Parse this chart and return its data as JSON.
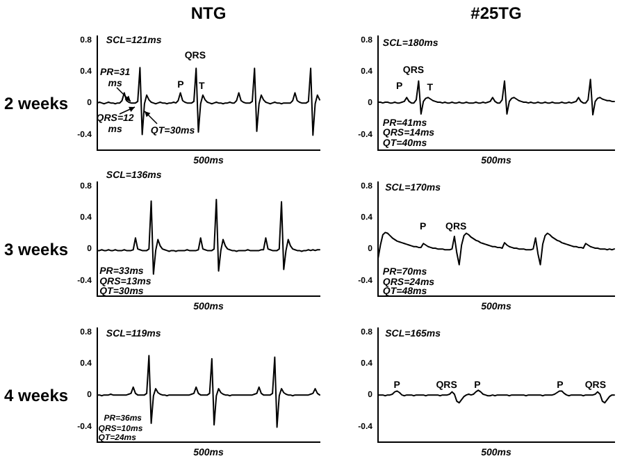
{
  "chart_data": [
    {
      "type": "line",
      "title": "NTG",
      "ylabel": "2 weeks",
      "xlabel": "500ms",
      "tick_labels": "y",
      "ylim": [
        -0.6,
        0.85
      ],
      "yticks": [
        -0.4,
        0,
        0.4,
        0.8
      ],
      "annotations": [
        "SCL=121ms",
        "PR=31 ms",
        "QRS=12 ms",
        "QT=30ms",
        "QRS",
        "P",
        "T"
      ],
      "categories": [
        null,
        null,
        null,
        null,
        null,
        null,
        null,
        null,
        null,
        null,
        null,
        null,
        null,
        null,
        null,
        null,
        null,
        null,
        null,
        null,
        null,
        null,
        null,
        null,
        null,
        null,
        null,
        null,
        null,
        null,
        null,
        null,
        null,
        null,
        null,
        null,
        null,
        null,
        null,
        null,
        null,
        null,
        null,
        null,
        null,
        null,
        null,
        null,
        null,
        null,
        null,
        null,
        null,
        null,
        null,
        null,
        null,
        null,
        null,
        null,
        null,
        null,
        null,
        null,
        null,
        null,
        null,
        null,
        null,
        null,
        null,
        null,
        null,
        null,
        null,
        null,
        null,
        null,
        null,
        null,
        null,
        null,
        null,
        null,
        null,
        null,
        null,
        null,
        null,
        null,
        null,
        null,
        null,
        null,
        null,
        null,
        null,
        null,
        null,
        null
      ],
      "series": [
        {
          "color": "#000000",
          "values": [
            0,
            0.01,
            0,
            -0.01,
            0,
            0.01,
            0,
            0,
            -0.01,
            0,
            0,
            0.03,
            0.13,
            0.03,
            0.01,
            0,
            0,
            0,
            0.02,
            0.45,
            -0.4,
            -0.01,
            0.1,
            0.04,
            0.01,
            0,
            -0.01,
            0,
            0.01,
            0,
            0,
            -0.01,
            0,
            0,
            0.01,
            0,
            0.03,
            0.13,
            0.03,
            0.01,
            0,
            0,
            0,
            0.02,
            0.44,
            -0.37,
            -0.01,
            0.1,
            0.04,
            0.01,
            0,
            -0.01,
            0,
            0.01,
            0,
            0,
            -0.01,
            0,
            0,
            0.01,
            0,
            0,
            0.03,
            0.13,
            0.03,
            0.01,
            0,
            0,
            0,
            0.02,
            0.44,
            -0.36,
            -0.01,
            0.1,
            0.04,
            0.01,
            0,
            -0.01,
            0,
            0.01,
            0,
            0,
            -0.01,
            0,
            0,
            0,
            0,
            0.03,
            0.13,
            0.03,
            0.01,
            0,
            0,
            0,
            0.02,
            0.44,
            -0.41,
            -0.01,
            0.1,
            0.04
          ]
        }
      ]
    },
    {
      "type": "line",
      "title": "#25TG",
      "xlabel": "500ms",
      "tick_labels": "y",
      "ylim": [
        -0.6,
        0.85
      ],
      "yticks": [
        -0.4,
        0,
        0.4,
        0.8
      ],
      "annotations": [
        "SCL=180ms",
        "QRS",
        "P",
        "T",
        "PR=41ms",
        "QRS=14ms",
        "QT=40ms"
      ],
      "categories": [
        null,
        null,
        null,
        null,
        null,
        null,
        null,
        null,
        null,
        null,
        null,
        null,
        null,
        null,
        null,
        null,
        null,
        null,
        null,
        null,
        null,
        null,
        null,
        null,
        null,
        null,
        null,
        null,
        null,
        null,
        null,
        null,
        null,
        null,
        null,
        null,
        null,
        null,
        null,
        null,
        null,
        null,
        null,
        null,
        null,
        null,
        null,
        null,
        null,
        null,
        null,
        null,
        null,
        null,
        null,
        null,
        null,
        null,
        null,
        null,
        null,
        null,
        null,
        null,
        null,
        null,
        null,
        null,
        null,
        null,
        null,
        null,
        null,
        null,
        null,
        null,
        null,
        null,
        null,
        null,
        null,
        null,
        null,
        null,
        null,
        null,
        null,
        null,
        null,
        null,
        null,
        null,
        null,
        null,
        null,
        null,
        null,
        null,
        null,
        null
      ],
      "series": [
        {
          "color": "#000000",
          "values": [
            0.01,
            0.01,
            0,
            0.01,
            0.01,
            0,
            0,
            0.01,
            0,
            0,
            0.01,
            0.02,
            0.07,
            0.02,
            0,
            0,
            0.04,
            0.28,
            -0.14,
            0.02,
            0.06,
            0.07,
            0.05,
            0.03,
            0.02,
            0.01,
            0.01,
            0,
            0.01,
            0,
            0,
            0.01,
            0,
            0,
            0.01,
            0,
            0,
            0.01,
            0,
            0,
            0,
            0.01,
            0,
            0,
            0.01,
            0,
            0.01,
            0.02,
            0.07,
            0.02,
            0,
            0,
            0.04,
            0.28,
            -0.14,
            0.02,
            0.06,
            0.07,
            0.05,
            0.03,
            0.02,
            0.01,
            0.01,
            0,
            0.01,
            0,
            0,
            0.01,
            0,
            0,
            0.01,
            0,
            0,
            0.01,
            0,
            0,
            0,
            0.01,
            0,
            0,
            0.01,
            0,
            0.01,
            0.02,
            0.07,
            0.02,
            0,
            0,
            0.04,
            0.3,
            -0.15,
            0.02,
            0.06,
            0.07,
            0.05,
            0.04,
            0.03,
            0.03,
            0.02,
            0.02
          ]
        }
      ]
    },
    {
      "type": "line",
      "ylabel": "3 weeks",
      "xlabel": "500ms",
      "tick_labels": "y",
      "ylim": [
        -0.6,
        0.85
      ],
      "yticks": [
        -0.4,
        0,
        0.4,
        0.8
      ],
      "annotations": [
        "SCL=136ms",
        "PR=33ms",
        "QRS=13ms",
        "QT=30ms"
      ],
      "categories": [
        null,
        null,
        null,
        null,
        null,
        null,
        null,
        null,
        null,
        null,
        null,
        null,
        null,
        null,
        null,
        null,
        null,
        null,
        null,
        null,
        null,
        null,
        null,
        null,
        null,
        null,
        null,
        null,
        null,
        null,
        null,
        null,
        null,
        null,
        null,
        null,
        null,
        null,
        null,
        null,
        null,
        null,
        null,
        null,
        null,
        null,
        null,
        null,
        null,
        null,
        null,
        null,
        null,
        null,
        null,
        null,
        null,
        null,
        null,
        null,
        null,
        null,
        null,
        null,
        null,
        null,
        null,
        null,
        null,
        null,
        null,
        null,
        null,
        null,
        null,
        null,
        null,
        null,
        null,
        null,
        null,
        null,
        null,
        null,
        null,
        null,
        null,
        null,
        null,
        null,
        null,
        null,
        null,
        null,
        null,
        null,
        null,
        null,
        null,
        null
      ],
      "series": [
        {
          "color": "#000000",
          "values": [
            -0.02,
            -0.02,
            -0.01,
            -0.02,
            -0.02,
            -0.01,
            -0.02,
            -0.02,
            -0.01,
            -0.02,
            -0.02,
            -0.02,
            -0.01,
            -0.02,
            -0.02,
            -0.02,
            -0.01,
            0.14,
            0,
            -0.01,
            -0.02,
            -0.02,
            -0.02,
            0,
            0.61,
            -0.32,
            -0.02,
            0.12,
            0.04,
            0,
            -0.01,
            -0.02,
            -0.03,
            -0.02,
            -0.02,
            -0.03,
            -0.02,
            -0.02,
            -0.02,
            -0.02,
            -0.01,
            -0.02,
            -0.02,
            -0.02,
            -0.02,
            -0.01,
            0.14,
            0,
            -0.01,
            -0.02,
            -0.02,
            -0.02,
            0,
            0.63,
            -0.28,
            -0.02,
            0.12,
            0.04,
            0,
            -0.01,
            -0.02,
            -0.02,
            -0.03,
            -0.02,
            -0.02,
            -0.02,
            -0.02,
            -0.01,
            -0.02,
            -0.02,
            -0.02,
            -0.02,
            -0.02,
            -0.01,
            -0.01,
            0.14,
            0,
            -0.01,
            -0.02,
            -0.02,
            -0.02,
            0,
            0.6,
            -0.26,
            -0.02,
            0.12,
            0.04,
            0,
            -0.01,
            -0.02,
            -0.02,
            -0.03,
            -0.02,
            -0.02,
            -0.01,
            -0.02,
            -0.01,
            -0.02,
            -0.01,
            -0.01
          ]
        }
      ]
    },
    {
      "type": "line",
      "xlabel": "500ms",
      "tick_labels": "y",
      "ylim": [
        -0.6,
        0.85
      ],
      "yticks": [
        -0.4,
        0,
        0.4,
        0.8
      ],
      "annotations": [
        "SCL=170ms",
        "P",
        "QRS",
        "PR=70ms",
        "QRS=24ms",
        "QT=48ms"
      ],
      "categories": [
        null,
        null,
        null,
        null,
        null,
        null,
        null,
        null,
        null,
        null,
        null,
        null,
        null,
        null,
        null,
        null,
        null,
        null,
        null,
        null,
        null,
        null,
        null,
        null,
        null,
        null,
        null,
        null,
        null,
        null,
        null,
        null,
        null,
        null,
        null,
        null,
        null,
        null,
        null,
        null,
        null,
        null,
        null,
        null,
        null,
        null,
        null,
        null,
        null,
        null,
        null,
        null,
        null,
        null,
        null,
        null,
        null,
        null,
        null,
        null,
        null,
        null,
        null,
        null,
        null,
        null,
        null,
        null,
        null,
        null,
        null,
        null,
        null,
        null,
        null,
        null,
        null,
        null,
        null,
        null,
        null,
        null,
        null,
        null,
        null,
        null,
        null,
        null,
        null,
        null,
        null,
        null,
        null,
        null,
        null,
        null,
        null,
        null,
        null,
        null
      ],
      "series": [
        {
          "color": "#000000",
          "values": [
            -0.12,
            0.05,
            0.18,
            0.21,
            0.2,
            0.17,
            0.14,
            0.12,
            0.1,
            0.09,
            0.08,
            0.07,
            0.06,
            0.05,
            0.04,
            0.03,
            0.03,
            0.02,
            0.02,
            0.07,
            0.05,
            0.03,
            0.02,
            0.01,
            0.01,
            0,
            0,
            0,
            -0.01,
            -0.01,
            -0.01,
            0,
            0.16,
            -0.05,
            -0.2,
            0.05,
            0.17,
            0.2,
            0.18,
            0.15,
            0.13,
            0.11,
            0.1,
            0.08,
            0.07,
            0.06,
            0.05,
            0.04,
            0.03,
            0.03,
            0.02,
            0.02,
            0.01,
            0.08,
            0.05,
            0.03,
            0.02,
            0.01,
            0.01,
            0,
            0,
            0,
            -0.01,
            -0.01,
            -0.01,
            0,
            0.14,
            -0.06,
            -0.2,
            0.06,
            0.17,
            0.2,
            0.18,
            0.15,
            0.13,
            0.11,
            0.1,
            0.08,
            0.07,
            0.06,
            0.05,
            0.04,
            0.03,
            0.03,
            0.02,
            0.02,
            0.01,
            0.07,
            0.05,
            0.03,
            0.02,
            0.01,
            0.01,
            0,
            0,
            0,
            -0.01,
            0,
            -0.01,
            0
          ]
        }
      ]
    },
    {
      "type": "line",
      "ylabel": "4 weeks",
      "xlabel": "500ms",
      "tick_labels": "y",
      "ylim": [
        -0.6,
        0.85
      ],
      "yticks": [
        -0.4,
        0,
        0.4,
        0.8
      ],
      "annotations": [
        "SCL=119ms",
        "PR=36ms",
        "QRS=10ms",
        "QT=24ms"
      ],
      "categories": [
        null,
        null,
        null,
        null,
        null,
        null,
        null,
        null,
        null,
        null,
        null,
        null,
        null,
        null,
        null,
        null,
        null,
        null,
        null,
        null,
        null,
        null,
        null,
        null,
        null,
        null,
        null,
        null,
        null,
        null,
        null,
        null,
        null,
        null,
        null,
        null,
        null,
        null,
        null,
        null,
        null,
        null,
        null,
        null,
        null,
        null,
        null,
        null,
        null,
        null,
        null,
        null,
        null,
        null,
        null,
        null,
        null,
        null,
        null,
        null,
        null,
        null,
        null,
        null,
        null,
        null,
        null,
        null,
        null,
        null,
        null,
        null,
        null,
        null,
        null,
        null,
        null,
        null,
        null,
        null,
        null,
        null,
        null,
        null,
        null,
        null,
        null,
        null,
        null,
        null,
        null,
        null,
        null,
        null,
        null,
        null,
        null,
        null,
        null,
        null
      ],
      "series": [
        {
          "color": "#000000",
          "values": [
            0,
            0,
            -0.01,
            0,
            0,
            0,
            0.01,
            0,
            0,
            0,
            0,
            0,
            0,
            0,
            0.01,
            0.02,
            0.1,
            0.02,
            0,
            0,
            0,
            0,
            0.02,
            0.5,
            -0.36,
            -0.01,
            0.08,
            0.03,
            0.01,
            0,
            0,
            -0.01,
            0,
            0,
            0,
            0,
            0,
            0,
            0,
            0,
            0,
            0,
            0.01,
            0.02,
            0.1,
            0.02,
            0,
            0,
            0,
            0,
            0.02,
            0.46,
            -0.38,
            -0.01,
            0.08,
            0.03,
            0.01,
            0,
            0,
            -0.01,
            0,
            0,
            0,
            0,
            0,
            0,
            0,
            0,
            0,
            0,
            0.01,
            0.02,
            0.1,
            0.02,
            0,
            0,
            0,
            0,
            0.02,
            0.48,
            -0.41,
            -0.01,
            0.08,
            0.03,
            0.01,
            0,
            0,
            -0.01,
            0,
            0,
            0,
            0,
            0,
            0,
            0,
            0.01,
            0.02,
            0.08,
            0.02,
            0
          ]
        }
      ]
    },
    {
      "type": "line",
      "xlabel": "500ms",
      "tick_labels": "y",
      "ylim": [
        -0.6,
        0.85
      ],
      "yticks": [
        -0.4,
        0,
        0.4,
        0.8
      ],
      "annotations": [
        "SCL=165ms",
        "P",
        "QRS",
        "P",
        "P",
        "QRS"
      ],
      "categories": [
        null,
        null,
        null,
        null,
        null,
        null,
        null,
        null,
        null,
        null,
        null,
        null,
        null,
        null,
        null,
        null,
        null,
        null,
        null,
        null,
        null,
        null,
        null,
        null,
        null,
        null,
        null,
        null,
        null,
        null,
        null,
        null,
        null,
        null,
        null,
        null,
        null,
        null,
        null,
        null,
        null,
        null,
        null,
        null,
        null,
        null,
        null,
        null,
        null,
        null,
        null,
        null,
        null,
        null,
        null,
        null,
        null,
        null,
        null,
        null,
        null,
        null,
        null,
        null,
        null,
        null,
        null,
        null,
        null,
        null,
        null,
        null,
        null,
        null,
        null,
        null,
        null,
        null,
        null,
        null,
        null,
        null,
        null,
        null,
        null,
        null,
        null,
        null,
        null,
        null,
        null,
        null,
        null,
        null,
        null,
        null,
        null,
        null,
        null,
        null
      ],
      "series": [
        {
          "color": "#000000",
          "values": [
            0,
            0,
            0,
            -0.01,
            0,
            0,
            0.01,
            0.04,
            0.05,
            0.03,
            0,
            -0.01,
            0,
            0,
            0,
            -0.01,
            0,
            0,
            0,
            0,
            -0.01,
            0,
            0,
            0,
            0,
            0,
            -0.01,
            0,
            0,
            0,
            0.01,
            0.04,
            0.01,
            -0.08,
            -0.1,
            -0.06,
            -0.02,
            0,
            0.01,
            0,
            0.01,
            0.04,
            0.06,
            0.04,
            0.01,
            0,
            -0.01,
            -0.01,
            0,
            -0.01,
            0,
            0,
            0,
            0,
            0,
            -0.01,
            0,
            0,
            0,
            0,
            0,
            0,
            -0.01,
            0,
            0,
            0,
            0,
            0,
            0,
            -0.01,
            0,
            0,
            0,
            0,
            0.01,
            0.03,
            0.05,
            0.05,
            0.02,
            0,
            -0.01,
            0,
            0,
            0,
            0,
            0,
            -0.01,
            0,
            0,
            0,
            0,
            0.01,
            0.04,
            0.01,
            -0.08,
            -0.1,
            -0.06,
            -0.02,
            0,
            0
          ]
        }
      ]
    }
  ]
}
